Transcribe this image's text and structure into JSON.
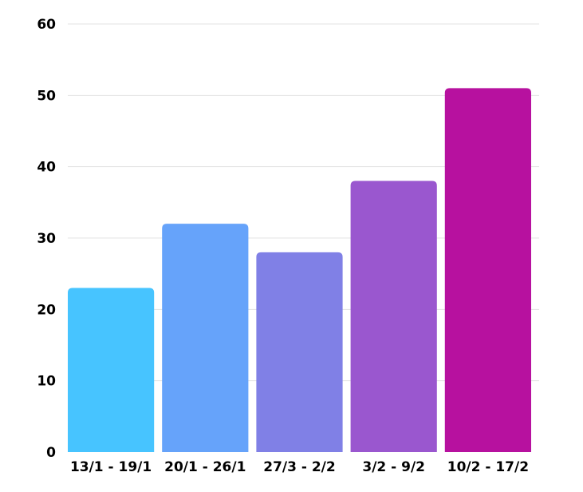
{
  "chart_data": {
    "type": "bar",
    "title": "",
    "xlabel": "",
    "ylabel": "",
    "categories": [
      "13/1 - 19/1",
      "20/1 - 26/1",
      "27/3 - 2/2",
      "3/2 - 9/2",
      "10/2 - 17/2"
    ],
    "values": [
      23,
      32,
      28,
      38,
      51
    ],
    "colors": [
      "#47c4ff",
      "#66a3fa",
      "#8080e6",
      "#9a57cf",
      "#b7119f"
    ],
    "ylim": [
      0,
      60
    ],
    "yticks": [
      "0",
      "10",
      "20",
      "30",
      "40",
      "50",
      "60"
    ],
    "grid": true,
    "legend": "none"
  }
}
